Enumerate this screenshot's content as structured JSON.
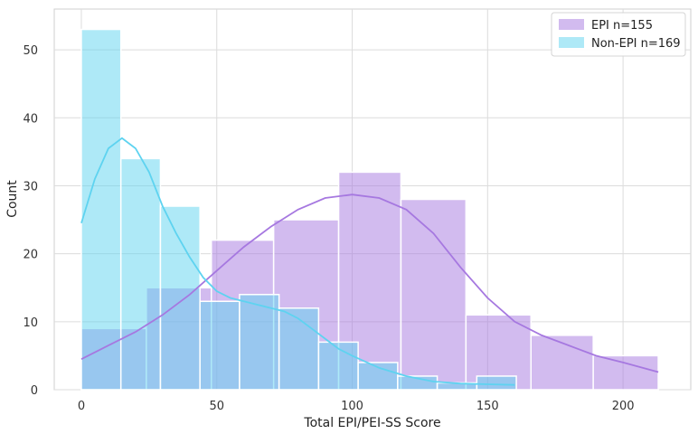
{
  "chart_data": {
    "type": "histogram",
    "xlabel": "Total EPI/PEI-SS Score",
    "ylabel": "Count",
    "xlim": [
      -10,
      225
    ],
    "ylim": [
      0,
      56
    ],
    "x_ticks": [
      0,
      50,
      100,
      150,
      200
    ],
    "y_ticks": [
      0,
      10,
      20,
      30,
      40,
      50
    ],
    "grid": true,
    "legend_position": "top-right",
    "series": [
      {
        "name": "EPI n=155",
        "color": "#a678e0",
        "bins": [
          {
            "x0": 0,
            "x1": 24,
            "count": 9
          },
          {
            "x0": 24,
            "x1": 48,
            "count": 15
          },
          {
            "x0": 48,
            "x1": 71,
            "count": 22
          },
          {
            "x0": 71,
            "x1": 95,
            "count": 25
          },
          {
            "x0": 95,
            "x1": 118,
            "count": 32
          },
          {
            "x0": 118,
            "x1": 142,
            "count": 28
          },
          {
            "x0": 142,
            "x1": 166,
            "count": 11
          },
          {
            "x0": 166,
            "x1": 189,
            "count": 8
          },
          {
            "x0": 189,
            "x1": 213,
            "count": 5
          }
        ],
        "kde": [
          [
            0,
            4.5
          ],
          [
            10,
            6.5
          ],
          [
            20,
            8.5
          ],
          [
            30,
            11
          ],
          [
            40,
            14
          ],
          [
            50,
            17.5
          ],
          [
            60,
            21
          ],
          [
            70,
            24
          ],
          [
            80,
            26.5
          ],
          [
            90,
            28.2
          ],
          [
            100,
            28.7
          ],
          [
            110,
            28.2
          ],
          [
            120,
            26.5
          ],
          [
            130,
            23
          ],
          [
            140,
            18
          ],
          [
            150,
            13.5
          ],
          [
            160,
            10
          ],
          [
            170,
            8
          ],
          [
            180,
            6.5
          ],
          [
            190,
            5
          ],
          [
            200,
            4
          ],
          [
            213,
            2.6
          ]
        ]
      },
      {
        "name": "Non-EPI n=169",
        "color": "#5ed3f0",
        "bins": [
          {
            "x0": 0,
            "x1": 14.6,
            "count": 53
          },
          {
            "x0": 14.6,
            "x1": 29.2,
            "count": 34
          },
          {
            "x0": 29.2,
            "x1": 43.8,
            "count": 27
          },
          {
            "x0": 43.8,
            "x1": 58.4,
            "count": 13
          },
          {
            "x0": 58.4,
            "x1": 73,
            "count": 14
          },
          {
            "x0": 73,
            "x1": 87.6,
            "count": 12
          },
          {
            "x0": 87.6,
            "x1": 102.2,
            "count": 7
          },
          {
            "x0": 102.2,
            "x1": 116.8,
            "count": 4
          },
          {
            "x0": 116.8,
            "x1": 131.4,
            "count": 2
          },
          {
            "x0": 131.4,
            "x1": 146,
            "count": 1
          },
          {
            "x0": 146,
            "x1": 160.6,
            "count": 2
          }
        ],
        "kde": [
          [
            0,
            24.5
          ],
          [
            5,
            31
          ],
          [
            10,
            35.5
          ],
          [
            15,
            37
          ],
          [
            20,
            35.5
          ],
          [
            25,
            32
          ],
          [
            30,
            27
          ],
          [
            35,
            23
          ],
          [
            40,
            19.5
          ],
          [
            45,
            16.5
          ],
          [
            50,
            14.5
          ],
          [
            55,
            13.5
          ],
          [
            60,
            13
          ],
          [
            65,
            12.5
          ],
          [
            70,
            12
          ],
          [
            75,
            11.5
          ],
          [
            80,
            10.5
          ],
          [
            85,
            9
          ],
          [
            90,
            7.5
          ],
          [
            95,
            6
          ],
          [
            100,
            5
          ],
          [
            110,
            3.2
          ],
          [
            120,
            2
          ],
          [
            130,
            1.2
          ],
          [
            140,
            0.9
          ],
          [
            150,
            0.8
          ],
          [
            160,
            0.7
          ]
        ]
      }
    ]
  }
}
